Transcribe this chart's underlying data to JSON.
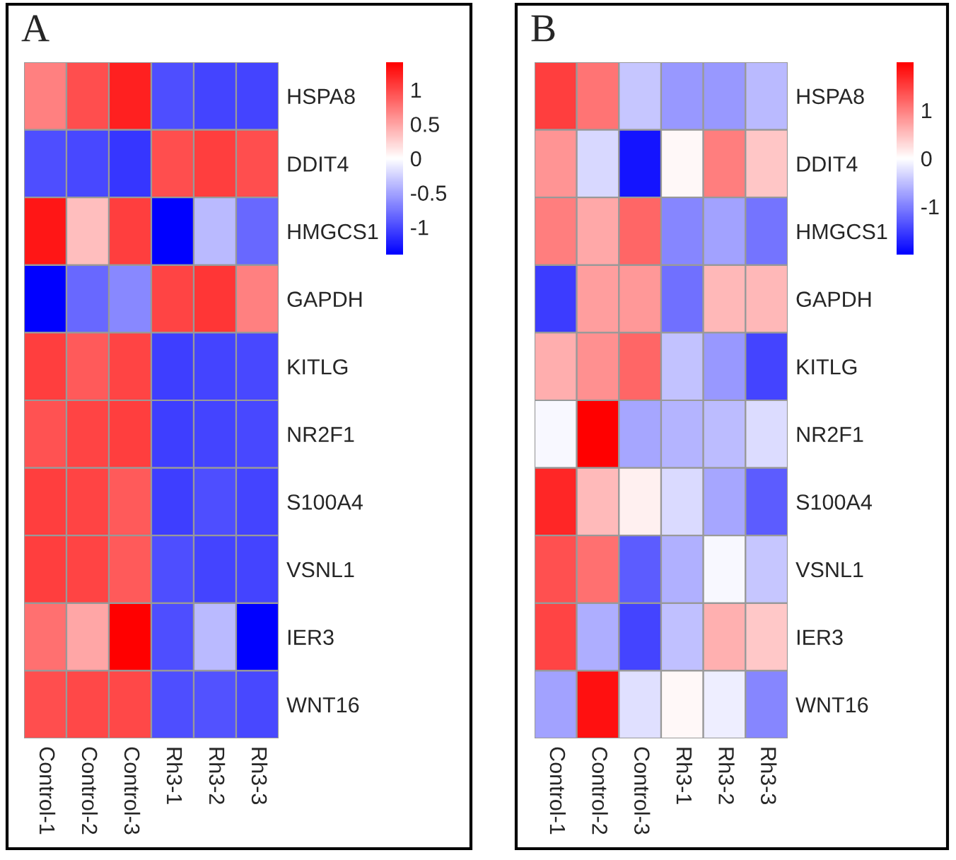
{
  "chart_data": [
    {
      "type": "heatmap",
      "title": "A",
      "categories": [
        "Control-1",
        "Control-2",
        "Control-3",
        "Rh3-1",
        "Rh3-2",
        "Rh3-3"
      ],
      "y_categories": [
        "HSPA8",
        "DDIT4",
        "HMGCS1",
        "GAPDH",
        "KITLG",
        "NR2F1",
        "S100A4",
        "VSNL1",
        "IER3",
        "WNT16"
      ],
      "cells": [
        [
          0.7,
          0.97,
          1.22,
          -0.97,
          -1.02,
          -1.02
        ],
        [
          -0.97,
          -1.0,
          -1.1,
          0.97,
          1.05,
          0.97
        ],
        [
          1.27,
          0.35,
          1.05,
          -1.4,
          -0.38,
          -0.83
        ],
        [
          -1.4,
          -0.83,
          -0.65,
          1.02,
          1.1,
          0.7
        ],
        [
          1.05,
          0.9,
          1.02,
          -1.05,
          -1.02,
          -1.0
        ],
        [
          0.95,
          1.02,
          1.05,
          -1.05,
          -1.02,
          -1.0
        ],
        [
          1.05,
          1.02,
          0.9,
          -1.05,
          -0.97,
          -1.02
        ],
        [
          1.05,
          1.02,
          0.9,
          -0.97,
          -1.02,
          -1.02
        ],
        [
          0.78,
          0.49,
          1.4,
          -0.97,
          -0.38,
          -1.4
        ],
        [
          0.97,
          1.0,
          1.0,
          -0.97,
          -0.95,
          -1.0
        ]
      ],
      "clim": [
        -1.4,
        1.4
      ],
      "cticks": [
        1,
        0.5,
        0,
        -0.5,
        -1
      ]
    },
    {
      "type": "heatmap",
      "title": "B",
      "categories": [
        "Control-1",
        "Control-2",
        "Control-3",
        "Rh3-1",
        "Rh3-2",
        "Rh3-3"
      ],
      "y_categories": [
        "HSPA8",
        "DDIT4",
        "HMGCS1",
        "GAPDH",
        "KITLG",
        "NR2F1",
        "S100A4",
        "VSNL1",
        "IER3",
        "WNT16"
      ],
      "cells": [
        [
          1.5,
          1.08,
          -0.45,
          -0.8,
          -0.8,
          -0.54
        ],
        [
          0.83,
          -0.3,
          -1.83,
          0.05,
          1.0,
          0.45
        ],
        [
          1.0,
          0.68,
          1.2,
          -0.95,
          -0.72,
          -1.08
        ],
        [
          -1.53,
          0.75,
          0.8,
          -1.12,
          0.55,
          0.55
        ],
        [
          0.64,
          0.87,
          1.2,
          -0.48,
          -0.8,
          -1.46
        ],
        [
          -0.05,
          2.0,
          -0.7,
          -0.58,
          -0.52,
          -0.27
        ],
        [
          1.69,
          0.54,
          0.12,
          -0.29,
          -0.7,
          -1.28
        ],
        [
          1.37,
          1.12,
          -1.28,
          -0.62,
          -0.05,
          -0.45
        ],
        [
          1.46,
          -0.63,
          -1.46,
          -0.5,
          0.62,
          0.43
        ],
        [
          -0.72,
          1.87,
          -0.24,
          0.05,
          -0.13,
          -0.95
        ]
      ],
      "clim": [
        -2,
        2
      ],
      "cticks": [
        1,
        0,
        -1
      ]
    }
  ]
}
